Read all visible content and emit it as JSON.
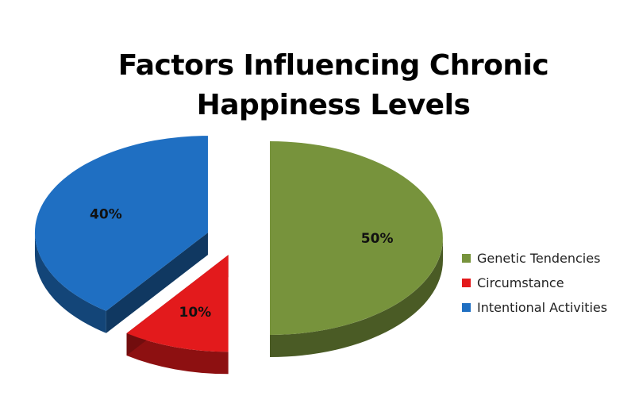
{
  "chart_data": {
    "type": "pie",
    "title": "Factors Influencing Chronic Happiness Levels",
    "title_lines": [
      "Factors Influencing Chronic",
      "Happiness Levels"
    ],
    "categories": [
      "Genetic Tendencies",
      "Circumstance",
      "Intentional Activities"
    ],
    "values": [
      50,
      10,
      40
    ],
    "data_labels": [
      "50%",
      "10%",
      "40%"
    ],
    "colors": [
      "#77933c",
      "#e31a1c",
      "#1f6fc2"
    ],
    "exploded": true,
    "style": "3d",
    "legend_position": "right"
  }
}
